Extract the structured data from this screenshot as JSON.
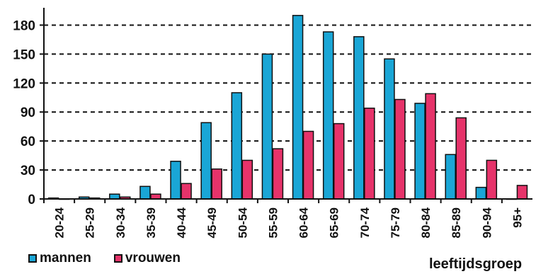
{
  "chart_data": {
    "type": "bar",
    "categories": [
      "20-24",
      "25-29",
      "30-34",
      "35-39",
      "40-44",
      "45-49",
      "50-54",
      "55-59",
      "60-64",
      "65-69",
      "70-74",
      "75-79",
      "80-84",
      "85-89",
      "90-94",
      "95+"
    ],
    "series": [
      {
        "name": "mannen",
        "color": "#1aa6d6",
        "values": [
          1,
          2,
          5,
          13,
          39,
          79,
          110,
          150,
          190,
          173,
          168,
          145,
          99,
          46,
          12,
          0
        ]
      },
      {
        "name": "vrouwen",
        "color": "#e6336a",
        "values": [
          0,
          1,
          2,
          5,
          16,
          31,
          40,
          52,
          70,
          78,
          94,
          103,
          109,
          84,
          40,
          14
        ]
      }
    ],
    "yticks": [
      0,
      30,
      60,
      90,
      120,
      150,
      180
    ],
    "ylim": [
      0,
      195
    ],
    "xlabel": "leeftijdsgroep",
    "ylabel": "",
    "grid": "horizontal dashed",
    "legend_position": "bottom-left"
  }
}
